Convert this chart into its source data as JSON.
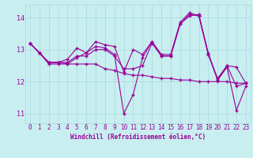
{
  "xlabel": "Windchill (Refroidissement éolien,°C)",
  "background_color": "#c8eef0",
  "line_color": "#990099",
  "grid_color": "#a8d8dc",
  "xlim": [
    -0.5,
    23.5
  ],
  "ylim": [
    10.7,
    14.4
  ],
  "yticks": [
    11,
    12,
    13,
    14
  ],
  "xticks": [
    0,
    1,
    2,
    3,
    4,
    5,
    6,
    7,
    8,
    9,
    10,
    11,
    12,
    13,
    14,
    15,
    16,
    17,
    18,
    19,
    20,
    21,
    22,
    23
  ],
  "series1": [
    13.2,
    12.9,
    12.6,
    12.6,
    12.6,
    12.8,
    12.8,
    13.0,
    13.0,
    12.8,
    12.4,
    12.4,
    12.5,
    13.2,
    12.8,
    12.8,
    13.8,
    14.05,
    14.1,
    12.85,
    12.1,
    12.5,
    11.85,
    11.95
  ],
  "series2": [
    13.2,
    12.9,
    12.6,
    12.6,
    12.55,
    12.75,
    12.9,
    13.1,
    13.05,
    12.85,
    11.0,
    11.6,
    12.75,
    13.25,
    12.8,
    12.8,
    13.8,
    14.1,
    14.05,
    12.85,
    12.05,
    12.45,
    11.1,
    11.85
  ],
  "series3": [
    13.2,
    12.9,
    12.55,
    12.55,
    12.55,
    12.55,
    12.55,
    12.55,
    12.4,
    12.35,
    12.25,
    12.2,
    12.2,
    12.15,
    12.1,
    12.1,
    12.05,
    12.05,
    12.0,
    12.0,
    12.0,
    12.0,
    11.95,
    11.95
  ],
  "series4": [
    13.2,
    12.9,
    12.6,
    12.6,
    12.7,
    13.05,
    12.9,
    13.25,
    13.15,
    13.1,
    12.3,
    13.0,
    12.85,
    13.25,
    12.85,
    12.85,
    13.85,
    14.15,
    14.05,
    12.9,
    12.05,
    12.5,
    12.45,
    11.95
  ],
  "xlabel_fontsize": 5.5,
  "tick_fontsize": 5.5
}
